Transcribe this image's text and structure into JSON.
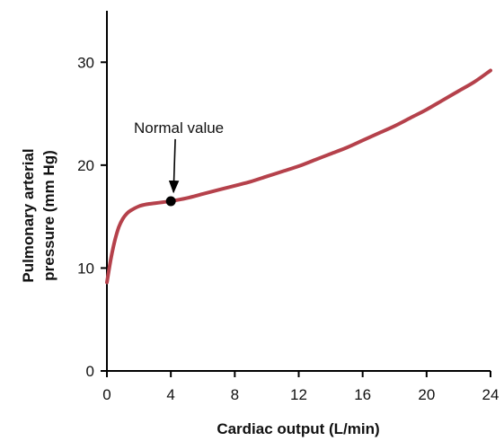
{
  "chart_data": {
    "type": "line",
    "xlabel": "Cardiac output (L/min)",
    "ylabel_lines": [
      "Pulmonary arterial",
      "pressure (mm Hg)"
    ],
    "xlim": [
      0,
      24
    ],
    "ylim": [
      0,
      35
    ],
    "xticks": [
      0,
      4,
      8,
      12,
      16,
      20,
      24
    ],
    "yticks": [
      0,
      10,
      20,
      30
    ],
    "grid": false,
    "series": [
      {
        "color": "#b5414b",
        "x": [
          0,
          0.25,
          0.5,
          0.75,
          1,
          1.25,
          1.5,
          2,
          2.5,
          3,
          3.5,
          4,
          5,
          6,
          7,
          8,
          9,
          10,
          11,
          12,
          13,
          14,
          15,
          16,
          17,
          18,
          19,
          20,
          21,
          22,
          23,
          24
        ],
        "y": [
          8.6,
          10.9,
          12.7,
          14.0,
          14.8,
          15.3,
          15.6,
          16.0,
          16.2,
          16.3,
          16.4,
          16.5,
          16.8,
          17.2,
          17.6,
          18.0,
          18.4,
          18.9,
          19.4,
          19.9,
          20.5,
          21.1,
          21.7,
          22.4,
          23.1,
          23.8,
          24.6,
          25.4,
          26.3,
          27.2,
          28.1,
          29.2
        ]
      }
    ],
    "point": {
      "x": 4,
      "y": 16.5,
      "color": "#000000"
    },
    "annotations": [
      {
        "text": "Normal value",
        "x": 4.5,
        "y": 22,
        "arrow_to": {
          "x": 4,
          "y": 16.5
        }
      }
    ]
  }
}
